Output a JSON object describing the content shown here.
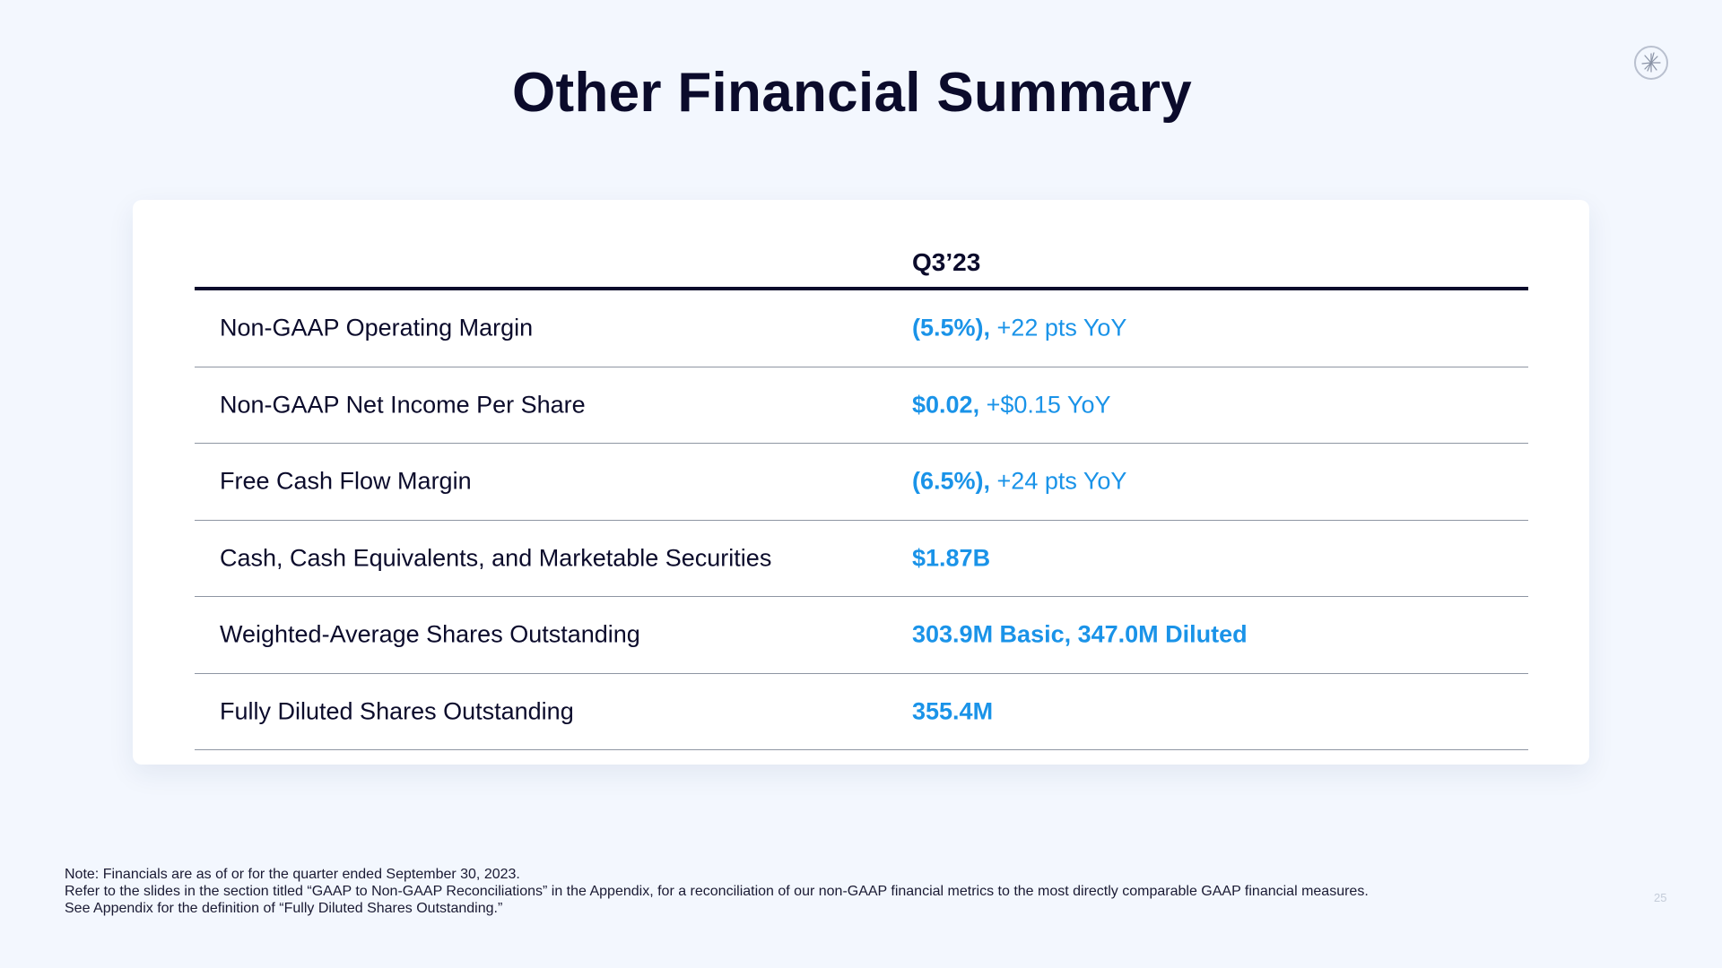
{
  "slide": {
    "title": "Other Financial Summary",
    "column_header": "Q3’23",
    "rows": [
      {
        "label": "Non-GAAP Operating Margin",
        "value": "(5.5%),",
        "delta": " +22 pts YoY"
      },
      {
        "label": "Non-GAAP Net Income Per Share",
        "value": "$0.02,",
        "delta": " +$0.15 YoY"
      },
      {
        "label": "Free Cash Flow Margin",
        "value": "(6.5%),",
        "delta": " +24 pts YoY"
      },
      {
        "label": "Cash, Cash Equivalents, and Marketable Securities",
        "value": "$1.87B",
        "delta": ""
      },
      {
        "label": "Weighted-Average Shares Outstanding",
        "value": "303.9M Basic, 347.0M Diluted",
        "delta": ""
      },
      {
        "label": "Fully Diluted Shares Outstanding",
        "value": "355.4M",
        "delta": ""
      }
    ],
    "footnotes": [
      "Note: Financials are as of or for the quarter ended September 30, 2023.",
      "Refer to the slides in the section titled “GAAP to Non-GAAP Reconciliations” in the Appendix, for a reconciliation of our non-GAAP financial metrics to the most directly comparable GAAP financial measures.",
      "See Appendix for the definition of  “Fully Diluted Shares Outstanding.”"
    ],
    "page_number": "25",
    "logo_icon": "starburst-logo-icon"
  },
  "colors": {
    "background": "#f3f7fe",
    "text": "#0b0b2b",
    "accent": "#1a93e8"
  }
}
